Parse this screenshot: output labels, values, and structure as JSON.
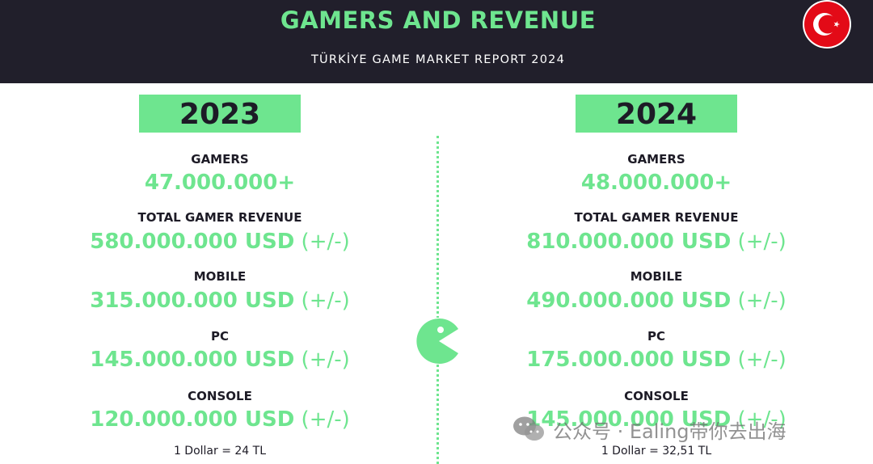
{
  "header": {
    "title": "GAMERS AND REVENUE",
    "subtitle": "TÜRKİYE GAME MARKET REPORT 2024",
    "flag_icon": "turkey-flag-icon"
  },
  "columns": [
    {
      "year": "2023",
      "gamers_label": "GAMERS",
      "gamers_value": "47.000.000+",
      "total_label": "TOTAL GAMER REVENUE",
      "total_value": "580.000.000 USD",
      "total_tail": " (+/-)",
      "mobile_label": "MOBILE",
      "mobile_value": "315.000.000 USD",
      "mobile_tail": " (+/-)",
      "pc_label": "PC",
      "pc_value": "145.000.000 USD",
      "pc_tail": " (+/-)",
      "console_label": "CONSOLE",
      "console_value": "120.000.000 USD",
      "console_tail": " (+/-)",
      "rate": "1 Dollar = 24 TL"
    },
    {
      "year": "2024",
      "gamers_label": "GAMERS",
      "gamers_value": "48.000.000+",
      "total_label": "TOTAL GAMER REVENUE",
      "total_value": "810.000.000 USD",
      "total_tail": " (+/-)",
      "mobile_label": "MOBILE",
      "mobile_value": "490.000.000 USD",
      "mobile_tail": " (+/-)",
      "pc_label": "PC",
      "pc_value": "175.000.000 USD",
      "pc_tail": " (+/-)",
      "console_label": "CONSOLE",
      "console_value": "145.000.000 USD",
      "console_tail": " (+/-)",
      "rate": "1 Dollar = 32,51 TL"
    }
  ],
  "decor": {
    "pacman_icon": "pacman-icon"
  },
  "watermark": {
    "icon": "wechat-icon",
    "text": "公众号 · Ealing带你去出海"
  },
  "colors": {
    "accent_green": "#6ee58f",
    "header_bg": "#211f2b",
    "text_dark": "#1d1b26",
    "flag_red": "#e30a17"
  }
}
